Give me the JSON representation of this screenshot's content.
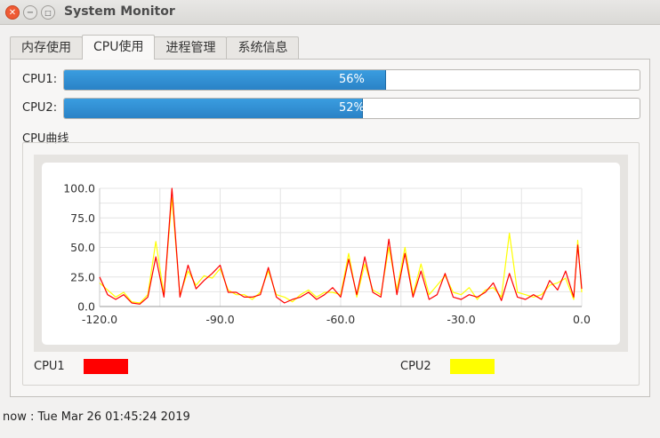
{
  "window": {
    "title": "System Monitor"
  },
  "tabs": [
    {
      "label": "内存使用",
      "active": false
    },
    {
      "label": "CPU使用",
      "active": true
    },
    {
      "label": "进程管理",
      "active": false
    },
    {
      "label": "系统信息",
      "active": false
    }
  ],
  "cpu_bars": [
    {
      "label": "CPU1:",
      "percent": 56,
      "text": "56%"
    },
    {
      "label": "CPU2:",
      "percent": 52,
      "text": "52%"
    }
  ],
  "curve_section": {
    "label": "CPU曲线"
  },
  "chart_data": {
    "type": "line",
    "xlim": [
      -120,
      0
    ],
    "ylim": [
      0,
      100
    ],
    "xticks": [
      "-120.0",
      "-90.0",
      "-60.0",
      "-30.0",
      "0.0"
    ],
    "yticks": [
      "0.0",
      "25.0",
      "50.0",
      "75.0",
      "100.0"
    ],
    "grid": true,
    "legend": "bottom",
    "series": [
      {
        "name": "CPU1",
        "color": "#ff0000",
        "x": [
          -120,
          -118,
          -116,
          -114,
          -112,
          -110,
          -108,
          -106,
          -104,
          -102,
          -100,
          -98,
          -96,
          -94,
          -92,
          -90,
          -88,
          -86,
          -84,
          -82,
          -80,
          -78,
          -76,
          -74,
          -72,
          -70,
          -68,
          -66,
          -64,
          -62,
          -60,
          -58,
          -56,
          -54,
          -52,
          -50,
          -48,
          -46,
          -44,
          -42,
          -40,
          -38,
          -36,
          -34,
          -32,
          -30,
          -28,
          -26,
          -24,
          -22,
          -20,
          -18,
          -16,
          -14,
          -12,
          -10,
          -8,
          -6,
          -4,
          -2,
          -1,
          0
        ],
        "y": [
          25,
          10,
          6,
          10,
          3,
          2,
          8,
          42,
          8,
          100,
          8,
          35,
          15,
          22,
          28,
          35,
          12,
          12,
          8,
          8,
          10,
          33,
          8,
          3,
          6,
          8,
          12,
          6,
          10,
          16,
          8,
          40,
          10,
          42,
          12,
          8,
          57,
          10,
          45,
          8,
          30,
          6,
          10,
          28,
          8,
          6,
          10,
          8,
          12,
          20,
          5,
          28,
          8,
          6,
          10,
          6,
          22,
          14,
          30,
          8,
          52,
          15
        ]
      },
      {
        "name": "CPU2",
        "color": "#ffff00",
        "x": [
          -120,
          -118,
          -116,
          -114,
          -112,
          -110,
          -108,
          -106,
          -104,
          -102,
          -100,
          -98,
          -96,
          -94,
          -92,
          -90,
          -88,
          -86,
          -84,
          -82,
          -80,
          -78,
          -76,
          -74,
          -72,
          -70,
          -68,
          -66,
          -64,
          -62,
          -60,
          -58,
          -56,
          -54,
          -52,
          -50,
          -48,
          -46,
          -44,
          -42,
          -40,
          -38,
          -36,
          -34,
          -32,
          -30,
          -28,
          -26,
          -24,
          -22,
          -20,
          -18,
          -16,
          -14,
          -12,
          -10,
          -8,
          -6,
          -4,
          -2,
          -1,
          0
        ],
        "y": [
          20,
          14,
          8,
          12,
          4,
          3,
          10,
          55,
          10,
          92,
          10,
          30,
          18,
          26,
          24,
          32,
          14,
          10,
          10,
          6,
          12,
          30,
          10,
          8,
          4,
          10,
          14,
          8,
          12,
          12,
          10,
          45,
          8,
          36,
          14,
          10,
          50,
          14,
          50,
          10,
          36,
          10,
          18,
          26,
          12,
          10,
          16,
          6,
          14,
          16,
          8,
          62,
          12,
          10,
          8,
          10,
          18,
          20,
          24,
          6,
          56,
          12
        ]
      }
    ]
  },
  "legend": [
    {
      "label": "CPU1",
      "color": "#ff0000"
    },
    {
      "label": "CPU2",
      "color": "#ffff00"
    }
  ],
  "status": {
    "text": "now : Tue Mar 26 01:45:24 2019"
  }
}
